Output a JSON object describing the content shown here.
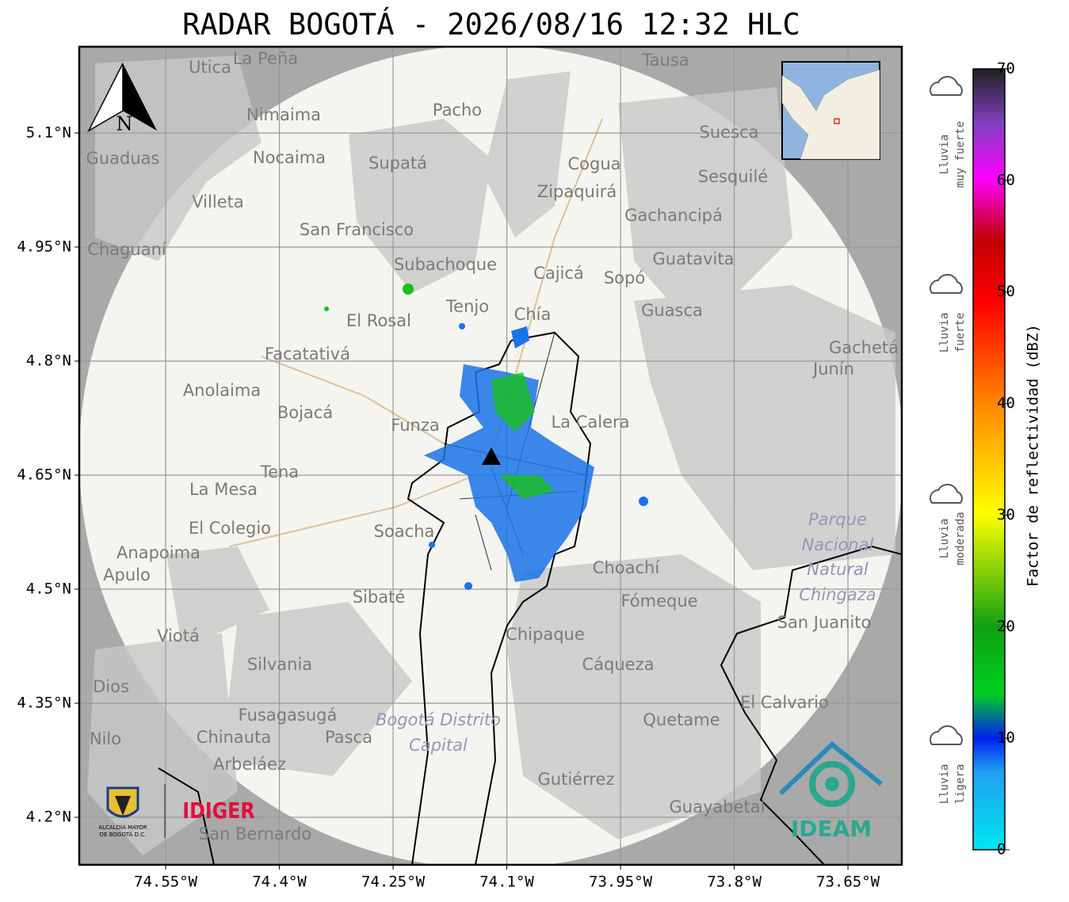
{
  "map": {
    "title": "RADAR BOGOTÁ - 2026/08/16 12:32 HLC",
    "xlim": [
      -74.664,
      -73.579
    ],
    "ylim": [
      4.1375,
      5.2135
    ],
    "xticks": [
      {
        "value": -74.55,
        "label": "74.55°W"
      },
      {
        "value": -74.4,
        "label": "74.4°W"
      },
      {
        "value": -74.25,
        "label": "74.25°W"
      },
      {
        "value": -74.1,
        "label": "74.1°W"
      },
      {
        "value": -73.95,
        "label": "73.95°W"
      },
      {
        "value": -73.8,
        "label": "73.8°W"
      },
      {
        "value": -73.65,
        "label": "73.65°W"
      }
    ],
    "yticks": [
      {
        "value": 5.1,
        "label": "5.1°N"
      },
      {
        "value": 4.95,
        "label": "4.95°N"
      },
      {
        "value": 4.8,
        "label": "4.8°N"
      },
      {
        "value": 4.65,
        "label": "4.65°N"
      },
      {
        "value": 4.5,
        "label": "4.5°N"
      },
      {
        "value": 4.35,
        "label": "4.35°N"
      },
      {
        "value": 4.2,
        "label": "4.2°N"
      }
    ],
    "places": [
      "La Peña",
      "Utica",
      "Tausa",
      "Pacho",
      "Nimaima",
      "Suesca",
      "Guaduas",
      "Nocaima",
      "Supatá",
      "Cogua",
      "Sesquilé",
      "Zipaquirá",
      "Villeta",
      "Gachancipá",
      "San Francisco",
      "Chaguaní",
      "Guatavita",
      "Subachoque",
      "Cajicá",
      "Sopó",
      "Tenjo",
      "Chía",
      "Guasca",
      "El Rosal",
      "Gachetá",
      "Junín",
      "Facatativá",
      "Anolaima",
      "Bojacá",
      "Funza",
      "La Calera",
      "Tena",
      "La Mesa",
      "Soacha",
      "El Colegio",
      "Anapoima",
      "Apulo",
      "Choachí",
      "Sibaté",
      "Fómeque",
      "San Juanito",
      "Viotá",
      "Chipaque",
      "Silvania",
      "Cáqueza",
      "Dios",
      "El Calvario",
      "Fusagasugá",
      "Quetame",
      "Nilo",
      "Chinauta",
      "Pasca",
      "Arbeláez",
      "Gutiérrez",
      "Guayabetal",
      "San Bernardo"
    ],
    "italic_places": [
      "Bogotá Distrito",
      "Capital",
      "Parque",
      "Nacional",
      "Natural",
      "Chingaza"
    ],
    "north": "N",
    "logos": {
      "alcaldia": "ALCALDÍA MAYOR",
      "alcaldia2": "DE BOGOTÁ D.C.",
      "idiger": "IDIGER",
      "ideam": "IDEAM"
    }
  },
  "colorbar": {
    "label": "Factor de reflectividad (dBZ)",
    "lim": [
      0,
      70
    ],
    "ticks": [
      0,
      10,
      20,
      30,
      40,
      50,
      60,
      70
    ],
    "legend": [
      {
        "line1": "Lluvia",
        "line2": "muy fuerte"
      },
      {
        "line1": "Lluvia",
        "line2": "fuerte"
      },
      {
        "line1": "Lluvia",
        "line2": "moderada"
      },
      {
        "line1": "Lluvia",
        "line2": "ligera"
      }
    ]
  }
}
